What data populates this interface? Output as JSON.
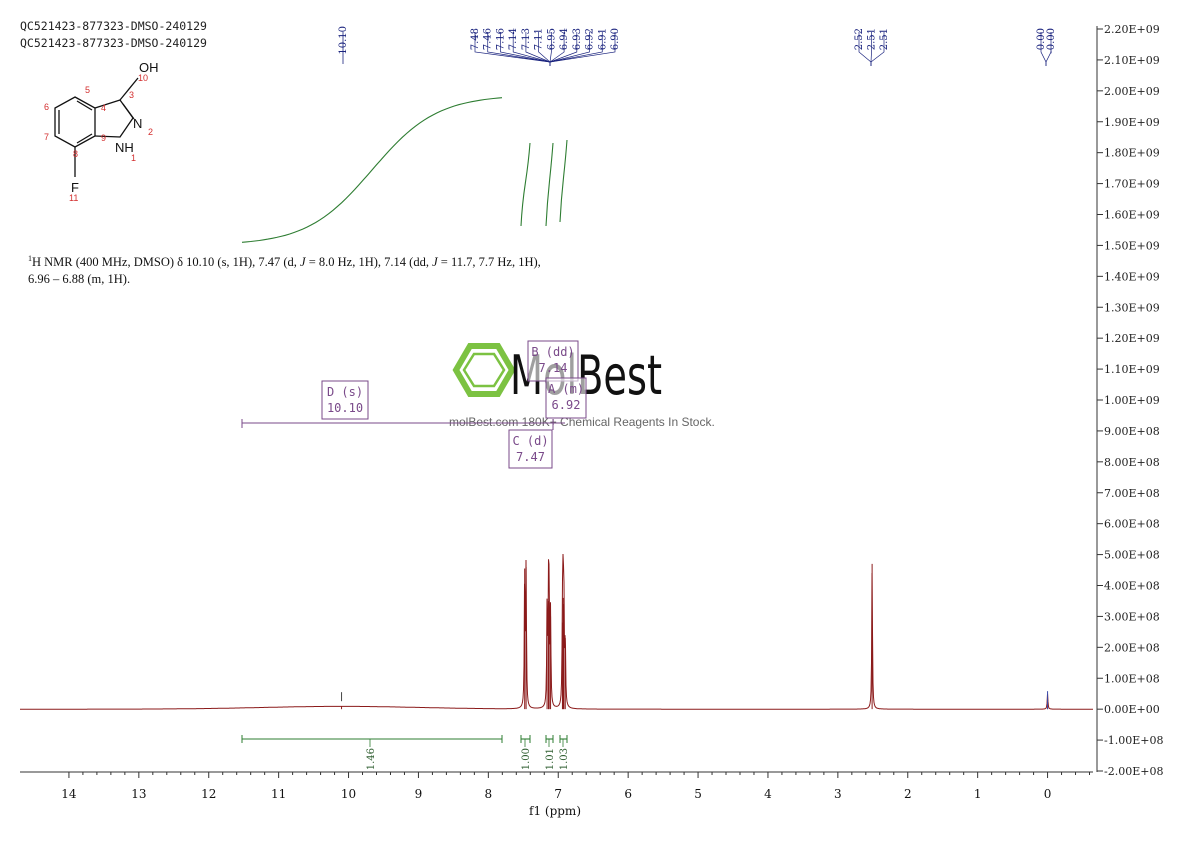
{
  "header": {
    "line1": "QC521423-877323-DMSO-240129",
    "line2": "QC521423-877323-DMSO-240129"
  },
  "molecule": {
    "group_oh": "OH",
    "group_n": "N",
    "group_nh": "NH",
    "group_f": "F",
    "atom_numbers": [
      "1",
      "2",
      "3",
      "4",
      "5",
      "6",
      "7",
      "8",
      "9",
      "10",
      "11"
    ]
  },
  "nmr_description": {
    "sup": "1",
    "text_a": "H NMR (400 MHz, DMSO) δ 10.10 (s, 1H), 7.47 (d, ",
    "j_label": "J",
    "text_b": " = 8.0 Hz, 1H), 7.14 (dd, ",
    "text_c": " = 11.7, 7.7 Hz, 1H),",
    "text_d": "6.96 – 6.88 (m, 1H)."
  },
  "peak_labels": {
    "group1": [
      "10.10"
    ],
    "group2": [
      "7.48",
      "7.46",
      "7.16",
      "7.14",
      "7.13",
      "7.11",
      "6.95",
      "6.94",
      "6.93",
      "6.92",
      "6.91",
      "6.90"
    ],
    "group3": [
      "2.52",
      "2.51",
      "2.51"
    ],
    "group4": [
      "0.00",
      "-0.00"
    ]
  },
  "multiplets": [
    {
      "letter": "D (s)",
      "shift": "10.10"
    },
    {
      "letter": "B (dd)",
      "shift": "7.14"
    },
    {
      "letter": "A (m)",
      "shift": "6.92"
    },
    {
      "letter": "C (d)",
      "shift": "7.47"
    }
  ],
  "integrals": [
    "1.46",
    "1.00",
    "1.01",
    "1.03"
  ],
  "watermark": {
    "brand": "MolBest",
    "tagline": "molBest.com 180K+ Chemical Reagents In Stock."
  },
  "colors": {
    "spectrum": "#8b1a1a",
    "integral": "#2e7d32",
    "annotation": "#7a4a8a",
    "peak_label": "#1a237e",
    "watermark": "#7cc242"
  },
  "chart_data": {
    "type": "line",
    "title": "",
    "xlabel": "f1 (ppm)",
    "ylabel": "",
    "x_reversed": true,
    "xlim": [
      14.7,
      -0.65
    ],
    "ylim": [
      -200000000,
      2200000000
    ],
    "x_ticks": [
      "14",
      "13",
      "12",
      "11",
      "10",
      "9",
      "8",
      "7",
      "6",
      "5",
      "4",
      "3",
      "2",
      "1",
      "0"
    ],
    "y_ticks": [
      "2.20E+09",
      "2.10E+09",
      "2.00E+09",
      "1.90E+09",
      "1.80E+09",
      "1.70E+09",
      "1.60E+09",
      "1.50E+09",
      "1.40E+09",
      "1.30E+09",
      "1.20E+09",
      "1.10E+09",
      "1.00E+09",
      "9.00E+08",
      "8.00E+08",
      "7.00E+08",
      "6.00E+08",
      "5.00E+08",
      "4.00E+08",
      "3.00E+08",
      "2.00E+08",
      "1.00E+08",
      "0.00E+00",
      "-1.00E+08",
      "-2.00E+08"
    ],
    "series": [
      {
        "peaks": [
          {
            "x": 10.1,
            "y": 10000000
          },
          {
            "x": 7.48,
            "y": 455000000
          },
          {
            "x": 7.46,
            "y": 460000000
          },
          {
            "x": 7.16,
            "y": 320000000
          },
          {
            "x": 7.14,
            "y": 350000000
          },
          {
            "x": 7.13,
            "y": 345000000
          },
          {
            "x": 7.11,
            "y": 300000000
          },
          {
            "x": 6.94,
            "y": 280000000
          },
          {
            "x": 6.93,
            "y": 360000000
          },
          {
            "x": 6.92,
            "y": 340000000
          },
          {
            "x": 6.9,
            "y": 230000000
          },
          {
            "x": 2.51,
            "y": 470000000
          },
          {
            "x": 0.0,
            "y": 50000000
          }
        ]
      }
    ]
  }
}
